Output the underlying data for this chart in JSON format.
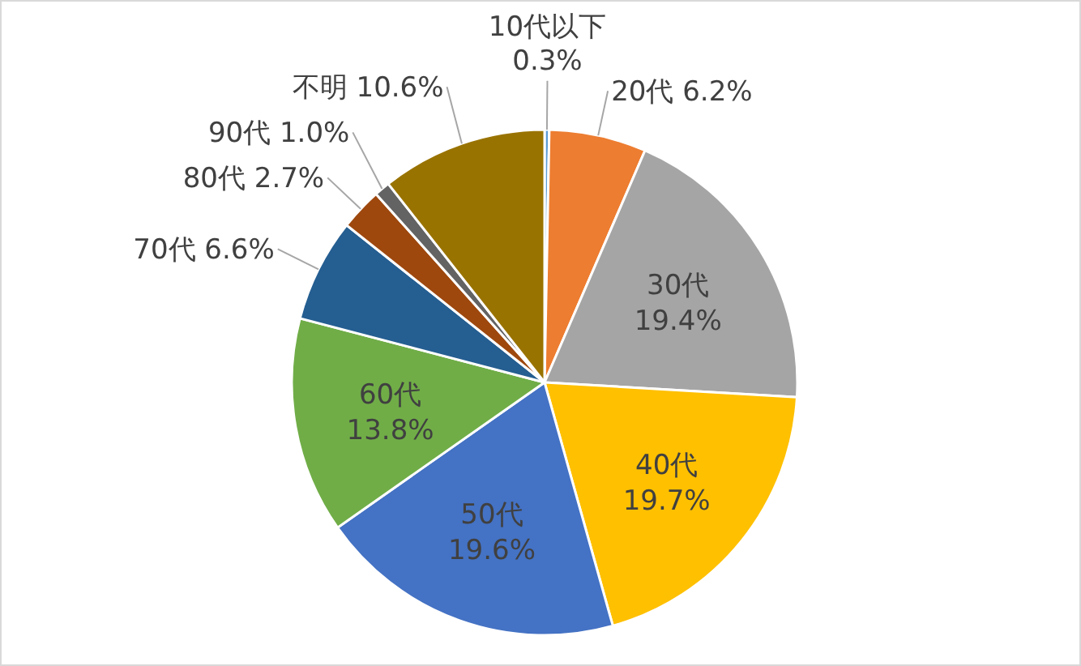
{
  "chart_data": {
    "type": "pie",
    "categories": [
      "10代以下",
      "20代",
      "30代",
      "40代",
      "50代",
      "60代",
      "70代",
      "80代",
      "90代",
      "不明"
    ],
    "values": [
      0.3,
      6.2,
      19.4,
      19.7,
      19.6,
      13.8,
      6.6,
      2.7,
      1.0,
      10.6
    ],
    "value_labels": [
      "0.3%",
      "6.2%",
      "19.4%",
      "19.7%",
      "19.6%",
      "13.8%",
      "6.6%",
      "2.7%",
      "1.0%",
      "10.6%"
    ],
    "colors": [
      "#5b9bd5",
      "#ed7d31",
      "#a5a5a5",
      "#ffc000",
      "#4472c4",
      "#70ad47",
      "#255e91",
      "#9e480e",
      "#636363",
      "#997300"
    ]
  }
}
